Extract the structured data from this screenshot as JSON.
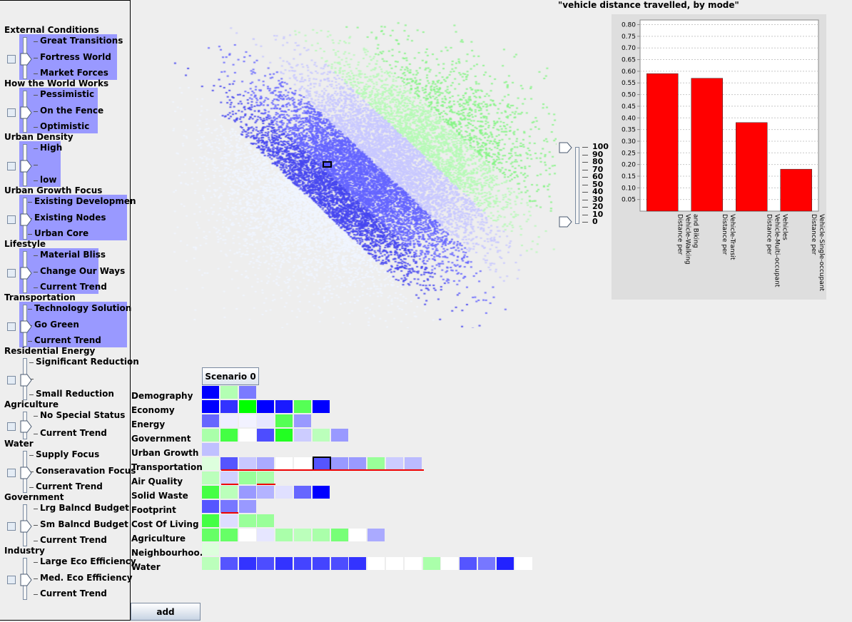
{
  "left_panel": {
    "groups": [
      {
        "title": "External Conditions",
        "options": [
          "Great Transitions",
          "Fortress World",
          "Market Forces"
        ],
        "highlight": true
      },
      {
        "title": "How the World Works",
        "options": [
          "Pessimistic",
          "On the Fence",
          "Optimistic"
        ],
        "highlight": true
      },
      {
        "title": "Urban Density",
        "options": [
          "High",
          "",
          "low"
        ],
        "highlight": true
      },
      {
        "title": "Urban Growth Focus",
        "options": [
          "Existing Developmen",
          "Existing Nodes",
          "Urban Core"
        ],
        "highlight": true
      },
      {
        "title": "Lifestyle",
        "options": [
          "Material Bliss",
          "Change Our Ways",
          "Current Trend"
        ],
        "highlight": true
      },
      {
        "title": "Transportation",
        "options": [
          "Technology Solution",
          "Go Green",
          "Current Trend"
        ],
        "highlight": true
      },
      {
        "title": "Residential Energy",
        "options": [
          "Significant Reduction",
          "",
          "Small Reduction"
        ],
        "highlight": false
      },
      {
        "title": "Agriculture",
        "options": [
          "No Special Status",
          "Current Trend"
        ],
        "highlight": false
      },
      {
        "title": "Water",
        "options": [
          "Supply Focus",
          "Conseravation Focus",
          "Current Trend"
        ],
        "highlight": false
      },
      {
        "title": "Government",
        "options": [
          "Lrg Balncd Budget",
          "Sm Balncd Budget",
          "Current Trend"
        ],
        "highlight": false
      },
      {
        "title": "Industry",
        "options": [
          "Large Eco Efficiency",
          "Med. Eco Efficiency",
          "Current Trend"
        ],
        "highlight": false
      }
    ]
  },
  "add_button": "add",
  "scenario_button": "Scenario 0",
  "heatmap": {
    "rows": [
      {
        "label": "Demography",
        "cells": [
          "#0000ff",
          "#b3ffb3",
          "#7a7aff"
        ]
      },
      {
        "label": "Economy",
        "cells": [
          "#0000ff",
          "#3333ff",
          "#00ff00",
          "#0000ff",
          "#1a1aff",
          "#55ff55",
          "#0000ff"
        ]
      },
      {
        "label": "Energy",
        "cells": [
          "#6666ff",
          "#eeeeff",
          "#f2f2ff",
          "#e6e6ff",
          "#55ff55",
          "#9999ff"
        ]
      },
      {
        "label": "Government",
        "cells": [
          "#aaffaa",
          "#44ff44",
          "#ffffff",
          "#4d4dff",
          "#22ff22",
          "#ccccff",
          "#bbffbb",
          "#9999ff"
        ]
      },
      {
        "label": "Urban Growth",
        "cells": [
          "#c0c0ff",
          "#eeeeee"
        ]
      },
      {
        "label": "Transportation",
        "cells": [
          "#ddffdd",
          "#5555ff",
          "#c8c8ff",
          "#aaaaff",
          "#ffffff",
          "#ffffff",
          "#5555ff",
          "#9999ff",
          "#9a9aff",
          "#99ff99",
          "#ccccff",
          "#bbbbff"
        ]
      },
      {
        "label": "Air Quality",
        "cells": [
          "#bbffbb",
          "#d0d0ff",
          "#99ff99",
          "#aaffaa"
        ]
      },
      {
        "label": "Solid Waste",
        "cells": [
          "#44ff44",
          "#bbffbb",
          "#9999ff",
          "#b3b3ff",
          "#e0e0ff",
          "#6666ff",
          "#0000ff"
        ]
      },
      {
        "label": "Footprint",
        "cells": [
          "#5555ff",
          "#7777ff",
          "#9999ff"
        ]
      },
      {
        "label": "Cost Of Living",
        "cells": [
          "#44ff44",
          "#ddddff",
          "#99ff99",
          "#99ff99"
        ]
      },
      {
        "label": "Agriculture",
        "cells": [
          "#66ff66",
          "#66ff66",
          "#ffffff",
          "#e6e6ff",
          "#aaffaa",
          "#bbffbb",
          "#aaffaa",
          "#77ff77",
          "#ffffff",
          "#aaaaff"
        ]
      },
      {
        "label": "Neighbourhoo...",
        "cells": [
          "#ddffdd"
        ]
      },
      {
        "label": "Water",
        "cells": [
          "#bbffbb",
          "#5555ff",
          "#3333ff",
          "#4d4dff",
          "#3333ff",
          "#4444ff",
          "#4444ff",
          "#4d4dff",
          "#3333ff",
          "#ffffff",
          "#ffffff",
          "#ffffff",
          "#aaffaa",
          "#ffffff",
          "#5555ff",
          "#7777ff",
          "#2222ff",
          "#ffffff"
        ]
      }
    ]
  },
  "slider_scale": {
    "ticks": [
      "100",
      "90",
      "80",
      "70",
      "60",
      "50",
      "40",
      "30",
      "20",
      "10",
      "0"
    ]
  },
  "chart_data": {
    "type": "bar",
    "title": "\"vehicle distance travelled, by mode\"",
    "categories": [
      "Distance per Vehicle-Walking and Biking",
      "Distance per Vehicle-Transit",
      "Distance per Vehicle-Multi-occupant Vehicles",
      "Distance per Vehicle-Single-occupant Vehicles"
    ],
    "values": [
      0.59,
      0.57,
      0.38,
      0.18
    ],
    "ylim": [
      0,
      0.82
    ],
    "yticks": [
      "0.80",
      "0.75",
      "0.70",
      "0.65",
      "0.60",
      "0.55",
      "0.50",
      "0.45",
      "0.40",
      "0.35",
      "0.30",
      "0.25",
      "0.20",
      "0.15",
      "0.10",
      "0.05"
    ],
    "bar_color": "#ff0000",
    "grid": true
  }
}
